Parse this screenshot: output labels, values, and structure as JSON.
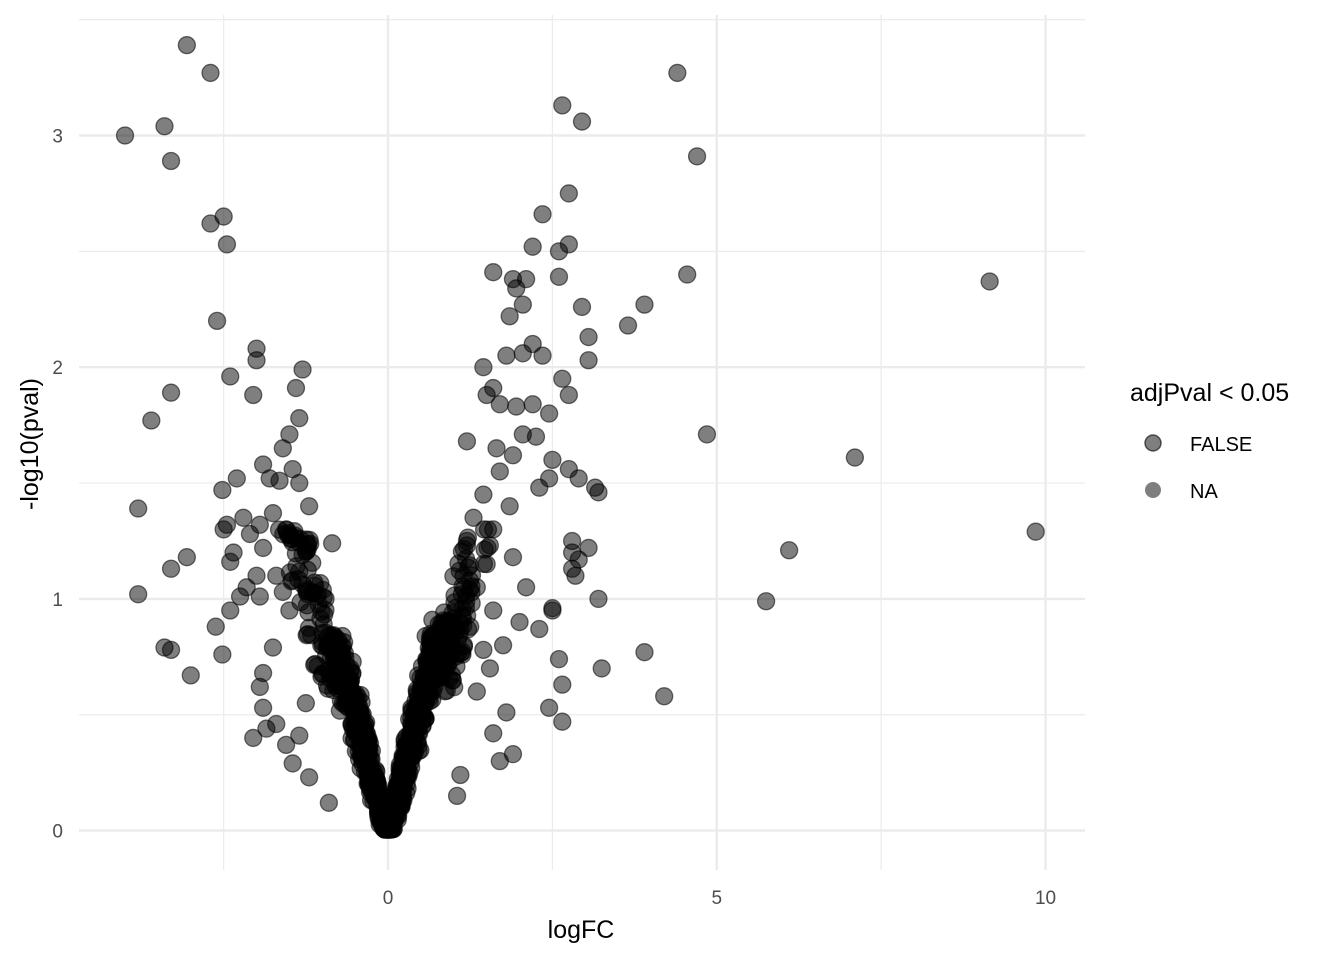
{
  "chart_data": {
    "type": "scatter",
    "title": "",
    "xlabel": "logFC",
    "ylabel": "-log10(pval)",
    "xlim": [
      -4.7,
      10.6
    ],
    "ylim": [
      -0.17,
      3.52
    ],
    "x_ticks": [
      0,
      5,
      10
    ],
    "x_tick_labels": [
      "0",
      "5",
      "10"
    ],
    "y_ticks": [
      0,
      1,
      2,
      3
    ],
    "y_tick_labels": [
      "0",
      "1",
      "2",
      "3"
    ],
    "grid": true,
    "legend": {
      "title": "adjPval < 0.05",
      "position": "right",
      "entries": [
        {
          "label": "FALSE",
          "color": "#000000",
          "outlined": true
        },
        {
          "label": "NA",
          "color": "#7f7f7f",
          "outlined": false
        }
      ]
    },
    "point_color": "#000000",
    "point_alpha": 0.5,
    "background": "#ffffff",
    "grid_color": "#ebebeb",
    "series": [
      {
        "name": "FALSE",
        "points": [
          [
            -4.0,
            3.0
          ],
          [
            -3.4,
            3.04
          ],
          [
            -3.06,
            3.39
          ],
          [
            -2.7,
            3.27
          ],
          [
            -3.3,
            2.89
          ],
          [
            -2.7,
            2.62
          ],
          [
            -2.5,
            2.65
          ],
          [
            -2.45,
            2.53
          ],
          [
            -2.6,
            2.2
          ],
          [
            -2.4,
            1.96
          ],
          [
            -2.0,
            2.08
          ],
          [
            -2.0,
            2.03
          ],
          [
            -2.05,
            1.88
          ],
          [
            -1.3,
            1.99
          ],
          [
            -1.4,
            1.91
          ],
          [
            -1.35,
            1.78
          ],
          [
            -1.5,
            1.71
          ],
          [
            -1.6,
            1.65
          ],
          [
            -3.3,
            1.89
          ],
          [
            -3.6,
            1.77
          ],
          [
            -2.3,
            1.52
          ],
          [
            -2.52,
            1.47
          ],
          [
            -1.9,
            1.58
          ],
          [
            -1.8,
            1.52
          ],
          [
            -1.65,
            1.51
          ],
          [
            -1.45,
            1.56
          ],
          [
            -1.35,
            1.5
          ],
          [
            -1.2,
            1.4
          ],
          [
            -2.5,
            1.3
          ],
          [
            -2.45,
            1.32
          ],
          [
            -2.2,
            1.35
          ],
          [
            -2.1,
            1.28
          ],
          [
            -1.95,
            1.32
          ],
          [
            -1.75,
            1.37
          ],
          [
            -1.55,
            1.3
          ],
          [
            -2.35,
            1.2
          ],
          [
            -2.4,
            1.16
          ],
          [
            -2.0,
            1.1
          ],
          [
            -1.7,
            1.1
          ],
          [
            -1.9,
            1.22
          ],
          [
            -2.15,
            1.05
          ],
          [
            -2.25,
            1.01
          ],
          [
            -1.95,
            1.01
          ],
          [
            -1.6,
            1.03
          ],
          [
            -1.45,
            1.08
          ],
          [
            -3.8,
            1.39
          ],
          [
            -3.3,
            1.13
          ],
          [
            -3.06,
            1.18
          ],
          [
            -3.8,
            1.02
          ],
          [
            -2.4,
            0.95
          ],
          [
            -2.62,
            0.88
          ],
          [
            -2.52,
            0.76
          ],
          [
            -3.4,
            0.79
          ],
          [
            -3.3,
            0.78
          ],
          [
            -3.0,
            0.67
          ],
          [
            -1.75,
            0.79
          ],
          [
            -1.9,
            0.68
          ],
          [
            -1.95,
            0.62
          ],
          [
            -1.9,
            0.53
          ],
          [
            -1.7,
            0.46
          ],
          [
            -1.85,
            0.44
          ],
          [
            -2.05,
            0.4
          ],
          [
            -1.55,
            0.37
          ],
          [
            -1.45,
            0.29
          ],
          [
            -1.35,
            0.41
          ],
          [
            -1.25,
            0.55
          ],
          [
            -1.2,
            0.23
          ],
          [
            -0.9,
            0.12
          ],
          [
            -1.5,
            0.95
          ],
          [
            -1.3,
            1.19
          ],
          [
            -0.85,
            1.24
          ],
          [
            -0.95,
            1.0
          ],
          [
            -0.75,
            0.8
          ],
          [
            4.4,
            3.27
          ],
          [
            2.65,
            3.13
          ],
          [
            2.95,
            3.06
          ],
          [
            4.7,
            2.91
          ],
          [
            2.75,
            2.75
          ],
          [
            2.35,
            2.66
          ],
          [
            2.75,
            2.53
          ],
          [
            2.2,
            2.52
          ],
          [
            2.6,
            2.5
          ],
          [
            1.6,
            2.41
          ],
          [
            1.9,
            2.38
          ],
          [
            2.1,
            2.38
          ],
          [
            1.95,
            2.34
          ],
          [
            2.6,
            2.39
          ],
          [
            4.55,
            2.4
          ],
          [
            9.15,
            2.37
          ],
          [
            3.9,
            2.27
          ],
          [
            2.05,
            2.27
          ],
          [
            1.85,
            2.22
          ],
          [
            2.95,
            2.26
          ],
          [
            3.65,
            2.18
          ],
          [
            3.05,
            2.13
          ],
          [
            2.2,
            2.1
          ],
          [
            1.8,
            2.05
          ],
          [
            2.05,
            2.06
          ],
          [
            2.35,
            2.05
          ],
          [
            3.05,
            2.03
          ],
          [
            1.45,
            2.0
          ],
          [
            2.65,
            1.95
          ],
          [
            2.75,
            1.88
          ],
          [
            1.5,
            1.88
          ],
          [
            1.6,
            1.91
          ],
          [
            1.7,
            1.84
          ],
          [
            1.95,
            1.83
          ],
          [
            2.2,
            1.84
          ],
          [
            4.85,
            1.71
          ],
          [
            7.1,
            1.61
          ],
          [
            2.45,
            1.8
          ],
          [
            2.05,
            1.71
          ],
          [
            2.25,
            1.7
          ],
          [
            2.5,
            1.6
          ],
          [
            2.75,
            1.56
          ],
          [
            2.3,
            1.48
          ],
          [
            2.45,
            1.52
          ],
          [
            2.9,
            1.52
          ],
          [
            3.15,
            1.48
          ],
          [
            3.2,
            1.46
          ],
          [
            1.65,
            1.65
          ],
          [
            1.9,
            1.62
          ],
          [
            1.2,
            1.68
          ],
          [
            9.85,
            1.29
          ],
          [
            6.1,
            1.21
          ],
          [
            5.75,
            0.99
          ],
          [
            2.8,
            1.25
          ],
          [
            3.05,
            1.22
          ],
          [
            2.8,
            1.2
          ],
          [
            2.9,
            1.17
          ],
          [
            2.8,
            1.13
          ],
          [
            2.85,
            1.1
          ],
          [
            3.2,
            1.0
          ],
          [
            2.5,
            0.96
          ],
          [
            2.5,
            0.95
          ],
          [
            2.3,
            0.87
          ],
          [
            3.9,
            0.77
          ],
          [
            3.25,
            0.7
          ],
          [
            2.6,
            0.74
          ],
          [
            2.65,
            0.63
          ],
          [
            4.2,
            0.58
          ],
          [
            2.45,
            0.53
          ],
          [
            2.65,
            0.47
          ],
          [
            1.8,
            0.51
          ],
          [
            1.6,
            0.42
          ],
          [
            1.9,
            0.33
          ],
          [
            1.7,
            0.3
          ],
          [
            1.1,
            0.24
          ],
          [
            1.05,
            0.15
          ],
          [
            1.6,
            1.3
          ],
          [
            1.9,
            1.18
          ],
          [
            2.1,
            1.05
          ],
          [
            2.0,
            0.9
          ],
          [
            1.75,
            0.8
          ],
          [
            1.55,
            0.7
          ],
          [
            1.35,
            0.6
          ],
          [
            1.85,
            1.4
          ],
          [
            1.7,
            1.55
          ],
          [
            1.45,
            1.45
          ],
          [
            1.3,
            1.35
          ],
          [
            1.2,
            1.25
          ],
          [
            1.5,
            1.15
          ],
          [
            1.35,
            1.05
          ],
          [
            1.6,
            0.95
          ],
          [
            1.25,
            0.88
          ],
          [
            1.45,
            0.78
          ],
          [
            1.15,
            1.1
          ]
        ]
      }
    ]
  }
}
